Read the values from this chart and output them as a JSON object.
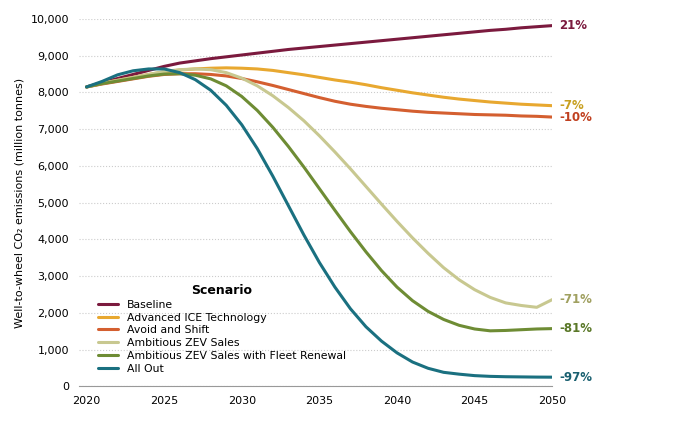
{
  "title": "",
  "ylabel": "Well-to-wheel CO₂ emissions (million tonnes)",
  "xlabel": "",
  "xlim": [
    2020,
    2050
  ],
  "ylim": [
    0,
    10000
  ],
  "yticks": [
    0,
    1000,
    2000,
    3000,
    4000,
    5000,
    6000,
    7000,
    8000,
    9000,
    10000
  ],
  "xticks": [
    2020,
    2025,
    2030,
    2035,
    2040,
    2045,
    2050
  ],
  "legend_title": "Scenario",
  "background_color": "#ffffff",
  "series": [
    {
      "label": "Baseline",
      "color": "#7b1a3e",
      "linewidth": 2.2,
      "end_label": "21%",
      "end_label_color": "#7b1a3e",
      "x": [
        2020,
        2021,
        2022,
        2023,
        2024,
        2025,
        2026,
        2027,
        2028,
        2029,
        2030,
        2031,
        2032,
        2033,
        2034,
        2035,
        2036,
        2037,
        2038,
        2039,
        2040,
        2041,
        2042,
        2043,
        2044,
        2045,
        2046,
        2047,
        2048,
        2049,
        2050
      ],
      "y": [
        8150,
        8270,
        8380,
        8490,
        8600,
        8710,
        8800,
        8860,
        8920,
        8970,
        9020,
        9070,
        9120,
        9170,
        9210,
        9250,
        9290,
        9330,
        9370,
        9410,
        9450,
        9490,
        9530,
        9570,
        9610,
        9650,
        9690,
        9720,
        9760,
        9790,
        9820
      ]
    },
    {
      "label": "Advanced ICE Technology",
      "color": "#e8a830",
      "linewidth": 2.2,
      "end_label": "-7%",
      "end_label_color": "#c8a020",
      "x": [
        2020,
        2021,
        2022,
        2023,
        2024,
        2025,
        2026,
        2027,
        2028,
        2029,
        2030,
        2031,
        2032,
        2033,
        2034,
        2035,
        2036,
        2037,
        2038,
        2039,
        2040,
        2041,
        2042,
        2043,
        2044,
        2045,
        2046,
        2047,
        2048,
        2049,
        2050
      ],
      "y": [
        8150,
        8250,
        8330,
        8410,
        8490,
        8560,
        8610,
        8640,
        8660,
        8670,
        8660,
        8640,
        8600,
        8540,
        8480,
        8410,
        8340,
        8280,
        8210,
        8130,
        8060,
        7990,
        7930,
        7870,
        7820,
        7780,
        7740,
        7710,
        7680,
        7660,
        7640
      ]
    },
    {
      "label": "Avoid and Shift",
      "color": "#d45f30",
      "linewidth": 2.2,
      "end_label": "-10%",
      "end_label_color": "#c04020",
      "x": [
        2020,
        2021,
        2022,
        2023,
        2024,
        2025,
        2026,
        2027,
        2028,
        2029,
        2030,
        2031,
        2032,
        2033,
        2034,
        2035,
        2036,
        2037,
        2038,
        2039,
        2040,
        2041,
        2042,
        2043,
        2044,
        2045,
        2046,
        2047,
        2048,
        2049,
        2050
      ],
      "y": [
        8150,
        8230,
        8300,
        8370,
        8440,
        8490,
        8510,
        8510,
        8490,
        8450,
        8380,
        8290,
        8190,
        8080,
        7970,
        7860,
        7760,
        7680,
        7620,
        7570,
        7530,
        7490,
        7460,
        7440,
        7420,
        7400,
        7390,
        7380,
        7360,
        7350,
        7330
      ]
    },
    {
      "label": "Ambitious ZEV Sales",
      "color": "#c8c890",
      "linewidth": 2.2,
      "end_label": "-71%",
      "end_label_color": "#a0a060",
      "x": [
        2020,
        2021,
        2022,
        2023,
        2024,
        2025,
        2026,
        2027,
        2028,
        2029,
        2030,
        2031,
        2032,
        2033,
        2034,
        2035,
        2036,
        2037,
        2038,
        2039,
        2040,
        2041,
        2042,
        2043,
        2044,
        2045,
        2046,
        2047,
        2048,
        2049,
        2050
      ],
      "y": [
        8150,
        8250,
        8330,
        8410,
        8490,
        8570,
        8620,
        8640,
        8620,
        8540,
        8390,
        8180,
        7910,
        7590,
        7230,
        6820,
        6380,
        5920,
        5440,
        4960,
        4490,
        4040,
        3620,
        3230,
        2900,
        2630,
        2420,
        2270,
        2200,
        2150,
        2360
      ]
    },
    {
      "label": "Ambitious ZEV Sales with Fleet Renewal",
      "color": "#6e8c34",
      "linewidth": 2.2,
      "end_label": "-81%",
      "end_label_color": "#5a7828",
      "x": [
        2020,
        2021,
        2022,
        2023,
        2024,
        2025,
        2026,
        2027,
        2028,
        2029,
        2030,
        2031,
        2032,
        2033,
        2034,
        2035,
        2036,
        2037,
        2038,
        2039,
        2040,
        2041,
        2042,
        2043,
        2044,
        2045,
        2046,
        2047,
        2048,
        2049,
        2050
      ],
      "y": [
        8150,
        8240,
        8310,
        8380,
        8450,
        8500,
        8510,
        8470,
        8370,
        8180,
        7890,
        7510,
        7050,
        6530,
        5970,
        5380,
        4790,
        4210,
        3660,
        3150,
        2700,
        2330,
        2040,
        1820,
        1660,
        1560,
        1510,
        1520,
        1540,
        1560,
        1570
      ]
    },
    {
      "label": "All Out",
      "color": "#1a7080",
      "linewidth": 2.2,
      "end_label": "-97%",
      "end_label_color": "#1a6070",
      "x": [
        2020,
        2021,
        2022,
        2023,
        2024,
        2025,
        2026,
        2027,
        2028,
        2029,
        2030,
        2031,
        2032,
        2033,
        2034,
        2035,
        2036,
        2037,
        2038,
        2039,
        2040,
        2041,
        2042,
        2043,
        2044,
        2045,
        2046,
        2047,
        2048,
        2049,
        2050
      ],
      "y": [
        8150,
        8300,
        8480,
        8590,
        8640,
        8640,
        8540,
        8350,
        8060,
        7650,
        7120,
        6470,
        5720,
        4920,
        4120,
        3370,
        2700,
        2110,
        1620,
        1230,
        910,
        660,
        490,
        380,
        330,
        290,
        270,
        260,
        255,
        250,
        248
      ]
    }
  ]
}
